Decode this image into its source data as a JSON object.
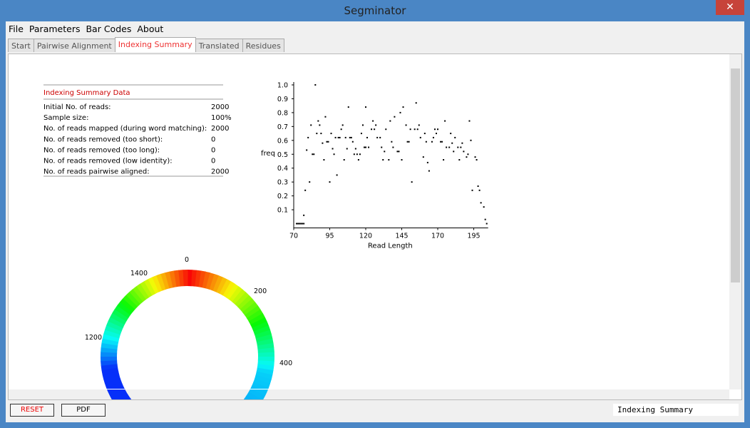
{
  "window": {
    "title": "Segminator"
  },
  "menu": [
    "File",
    "Parameters",
    "Bar Codes",
    "About"
  ],
  "tabs": [
    "Start",
    "Pairwise Alignment",
    "Indexing Summary",
    "Translated",
    "Residues"
  ],
  "summary": {
    "title": "Indexing Summary Data",
    "rows": [
      [
        "Initial No. of reads:",
        "2000"
      ],
      [
        "Sample size:",
        "100%"
      ],
      [
        "No. of reads mapped (during word matching):",
        "2000"
      ],
      [
        "No. of reads removed (too short):",
        "0"
      ],
      [
        "No. of reads removed (too long):",
        "0"
      ],
      [
        "No. of reads removed (low identity):",
        "0"
      ],
      [
        "No. of reads pairwise aligned:",
        "2000"
      ]
    ]
  },
  "chart_data": {
    "type": "scatter",
    "xlabel": "Read Length",
    "ylabel": "freq",
    "color": "#000000",
    "xlim": [
      70,
      204
    ],
    "ylim": [
      0,
      1.0
    ],
    "xticks": [
      70,
      95,
      120,
      145,
      170,
      195
    ],
    "yticks": [
      {
        "value": 0.1,
        "label": "0.1"
      },
      {
        "value": 0.2,
        "label": "0.2"
      },
      {
        "value": 0.3,
        "label": "0.3"
      },
      {
        "value": 0.4,
        "label": "0.4"
      },
      {
        "value": 0.5,
        "label": "0.5"
      },
      {
        "value": 0.6,
        "label": "0.6"
      },
      {
        "value": 0.7,
        "label": "0.7"
      },
      {
        "value": 0.8,
        "label": "0.8"
      },
      {
        "value": 0.9,
        "label": "0.9"
      },
      {
        "value": 1.0,
        "label": "1.0"
      }
    ],
    "x": [
      72,
      73,
      74,
      75,
      76,
      77,
      77,
      78,
      79,
      80,
      81,
      82,
      83,
      84,
      85,
      86,
      87,
      88,
      89,
      90,
      91,
      92,
      93,
      94,
      95,
      96,
      97,
      98,
      99,
      100,
      101,
      102,
      103,
      104,
      105,
      106,
      107,
      108,
      109,
      110,
      111,
      112,
      113,
      114,
      115,
      116,
      117,
      118,
      119,
      120,
      120,
      121,
      122,
      124,
      125,
      126,
      127,
      128,
      130,
      131,
      132,
      133,
      134,
      136,
      137,
      138,
      139,
      140,
      142,
      143,
      144,
      145,
      146,
      148,
      149,
      150,
      151,
      152,
      154,
      155,
      156,
      157,
      158,
      160,
      161,
      162,
      163,
      164,
      166,
      167,
      168,
      169,
      170,
      172,
      173,
      174,
      175,
      176,
      178,
      179,
      180,
      181,
      182,
      184,
      185,
      186,
      187,
      188,
      190,
      191,
      192,
      193,
      194,
      196,
      197,
      198,
      199,
      200,
      202,
      203,
      204
    ],
    "y": [
      0,
      0,
      0,
      0,
      0,
      0,
      0.06,
      0.24,
      0.53,
      0.62,
      0.3,
      0.71,
      0.5,
      0.5,
      1.0,
      0.65,
      0.74,
      0.71,
      0.65,
      0.58,
      0.46,
      0.77,
      0.59,
      0.59,
      0.3,
      0.65,
      0.54,
      0.5,
      0.62,
      0.35,
      0.62,
      0.62,
      0.68,
      0.71,
      0.46,
      0.62,
      0.54,
      0.84,
      0.62,
      0.62,
      0.59,
      0.5,
      0.54,
      0.5,
      0.46,
      0.5,
      0.65,
      0.71,
      0.55,
      0.55,
      0.84,
      0.62,
      0.55,
      0.68,
      0.74,
      0.68,
      0.71,
      0.62,
      0.62,
      0.55,
      0.46,
      0.52,
      0.68,
      0.46,
      0.74,
      0.59,
      0.55,
      0.77,
      0.52,
      0.52,
      0.8,
      0.46,
      0.84,
      0.71,
      0.59,
      0.59,
      0.68,
      0.3,
      0.68,
      0.87,
      0.68,
      0.71,
      0.62,
      0.48,
      0.65,
      0.59,
      0.44,
      0.38,
      0.59,
      0.62,
      0.68,
      0.65,
      0.68,
      0.59,
      0.59,
      0.46,
      0.74,
      0.55,
      0.55,
      0.65,
      0.58,
      0.52,
      0.62,
      0.55,
      0.46,
      0.55,
      0.58,
      0.52,
      0.48,
      0.5,
      0.74,
      0.6,
      0.24,
      0.48,
      0.46,
      0.27,
      0.24,
      0.15,
      0.12,
      0.03,
      0
    ]
  },
  "ring": {
    "labels": [
      "0",
      "200",
      "400",
      "1200",
      "1400"
    ]
  },
  "buttons": [
    "RESET",
    "PDF"
  ],
  "status": "Indexing Summary"
}
